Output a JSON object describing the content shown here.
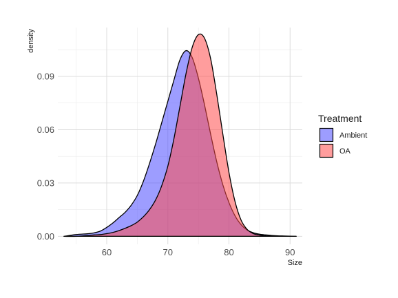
{
  "chart_data": {
    "type": "area",
    "subtype": "density",
    "title": "",
    "xlabel": "Size",
    "ylabel": "density",
    "xlim": [
      52,
      92
    ],
    "ylim": [
      -0.0045,
      0.1175
    ],
    "x_ticks": [
      60,
      70,
      80,
      90
    ],
    "y_ticks": [
      0.0,
      0.03,
      0.06,
      0.09
    ],
    "y_tick_labels": [
      "0.00",
      "0.03",
      "0.06",
      "0.09"
    ],
    "x_minor_ticks": [
      55,
      65,
      75,
      85
    ],
    "y_minor_ticks": [
      0.015,
      0.045,
      0.075,
      0.105
    ],
    "grid": true,
    "legend": {
      "title": "Treatment",
      "position": "right"
    },
    "series": [
      {
        "name": "Ambient",
        "color": "#4d4dff",
        "x": [
          53,
          55,
          57,
          58,
          59,
          60,
          61,
          62,
          63,
          64,
          65,
          66,
          67,
          68,
          69,
          70,
          71,
          72,
          73,
          74,
          75,
          76,
          77,
          78,
          79,
          80,
          81,
          82,
          83,
          84,
          85,
          86,
          87,
          88,
          89,
          90,
          91
        ],
        "y": [
          0.0,
          0.001,
          0.0015,
          0.002,
          0.003,
          0.005,
          0.0075,
          0.0105,
          0.0135,
          0.0175,
          0.023,
          0.031,
          0.041,
          0.052,
          0.064,
          0.076,
          0.088,
          0.0995,
          0.1045,
          0.1005,
          0.089,
          0.074,
          0.0575,
          0.042,
          0.029,
          0.019,
          0.0115,
          0.0065,
          0.0035,
          0.002,
          0.0012,
          0.0008,
          0.0005,
          0.0003,
          0.0002,
          0.0001,
          0.0
        ]
      },
      {
        "name": "OA",
        "color": "#ff4d4d",
        "x": [
          53,
          55,
          57,
          58,
          59,
          60,
          61,
          62,
          63,
          64,
          65,
          66,
          67,
          68,
          69,
          70,
          71,
          72,
          73,
          74,
          75,
          76,
          77,
          78,
          79,
          80,
          81,
          82,
          83,
          84,
          85,
          86,
          87,
          88,
          89,
          90,
          91
        ],
        "y": [
          0.0,
          0.0,
          0.0005,
          0.0008,
          0.001,
          0.0015,
          0.0022,
          0.0032,
          0.0045,
          0.006,
          0.008,
          0.011,
          0.015,
          0.0205,
          0.0285,
          0.0395,
          0.055,
          0.0735,
          0.092,
          0.1065,
          0.1135,
          0.1115,
          0.1,
          0.08,
          0.0575,
          0.036,
          0.0195,
          0.009,
          0.0038,
          0.0015,
          0.0007,
          0.0003,
          0.0002,
          0.0001,
          0.0001,
          0.0,
          0.0
        ]
      }
    ]
  }
}
